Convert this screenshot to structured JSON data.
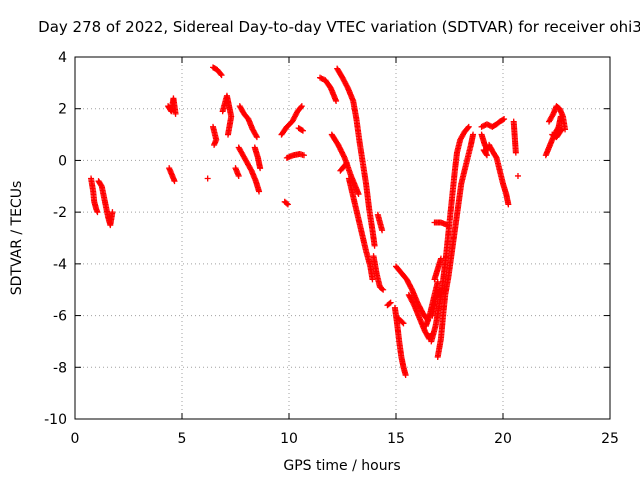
{
  "chart_data": {
    "type": "scatter",
    "title": "Day 278 of 2022, Sidereal Day-to-day VTEC variation (SDTVAR) for receiver ohi3",
    "xlabel": "GPS time / hours",
    "ylabel": "SDTVAR / TECUs",
    "xlim": [
      0,
      25
    ],
    "ylim": [
      -10,
      4
    ],
    "xticks": [
      0,
      5,
      10,
      15,
      20,
      25
    ],
    "yticks": [
      -10,
      -8,
      -6,
      -4,
      -2,
      0,
      2,
      4
    ],
    "xtick_labels": [
      "0",
      "5",
      "10",
      "15",
      "20",
      "25"
    ],
    "ytick_labels": [
      "-10",
      "-8",
      "-6",
      "-4",
      "-2",
      "0",
      "2",
      "4"
    ],
    "grid": true,
    "marker": "plus",
    "color": "#ff0000",
    "tracks": [
      [
        [
          0.75,
          -0.7
        ],
        [
          0.85,
          -1.2
        ],
        [
          0.9,
          -1.6
        ],
        [
          1.0,
          -1.9
        ],
        [
          1.05,
          -2.0
        ]
      ],
      [
        [
          1.1,
          -0.8
        ],
        [
          1.25,
          -1.0
        ],
        [
          1.4,
          -1.6
        ],
        [
          1.55,
          -2.2
        ],
        [
          1.65,
          -2.5
        ],
        [
          1.75,
          -2.0
        ]
      ],
      [
        [
          4.35,
          2.1
        ],
        [
          4.5,
          1.9
        ],
        [
          4.6,
          2.4
        ],
        [
          4.7,
          1.8
        ]
      ],
      [
        [
          4.4,
          -0.3
        ],
        [
          4.55,
          -0.6
        ],
        [
          4.65,
          -0.8
        ]
      ],
      [
        [
          6.2,
          -0.7
        ]
      ],
      [
        [
          6.45,
          3.6
        ],
        [
          6.65,
          3.5
        ],
        [
          6.85,
          3.3
        ]
      ],
      [
        [
          6.45,
          1.3
        ],
        [
          6.6,
          0.8
        ],
        [
          6.5,
          0.6
        ]
      ],
      [
        [
          6.9,
          1.9
        ],
        [
          7.1,
          2.5
        ],
        [
          7.3,
          1.7
        ],
        [
          7.15,
          1.0
        ]
      ],
      [
        [
          7.7,
          2.1
        ],
        [
          7.9,
          1.8
        ],
        [
          8.1,
          1.6
        ],
        [
          8.3,
          1.2
        ],
        [
          8.5,
          0.9
        ]
      ],
      [
        [
          7.65,
          0.5
        ],
        [
          7.85,
          0.2
        ],
        [
          8.05,
          -0.1
        ],
        [
          8.25,
          -0.4
        ],
        [
          8.45,
          -0.8
        ],
        [
          8.6,
          -1.2
        ]
      ],
      [
        [
          7.5,
          -0.3
        ],
        [
          7.65,
          -0.6
        ]
      ],
      [
        [
          8.4,
          0.5
        ],
        [
          8.55,
          0.1
        ],
        [
          8.65,
          -0.3
        ]
      ],
      [
        [
          9.65,
          1.0
        ],
        [
          9.9,
          1.3
        ],
        [
          10.15,
          1.5
        ],
        [
          10.4,
          1.9
        ],
        [
          10.6,
          2.1
        ]
      ],
      [
        [
          9.8,
          -1.6
        ],
        [
          9.95,
          -1.7
        ]
      ],
      [
        [
          9.9,
          0.1
        ],
        [
          10.2,
          0.2
        ],
        [
          10.5,
          0.25
        ],
        [
          10.7,
          0.2
        ]
      ],
      [
        [
          10.45,
          1.25
        ],
        [
          10.65,
          1.15
        ]
      ],
      [
        [
          11.45,
          3.2
        ],
        [
          11.7,
          3.1
        ],
        [
          11.95,
          2.8
        ],
        [
          12.2,
          2.3
        ]
      ],
      [
        [
          12.25,
          3.55
        ],
        [
          12.5,
          3.2
        ],
        [
          12.75,
          2.8
        ],
        [
          13.0,
          2.3
        ],
        [
          13.15,
          1.6
        ],
        [
          13.3,
          0.7
        ],
        [
          13.45,
          -0.1
        ],
        [
          13.6,
          -0.9
        ],
        [
          13.75,
          -1.9
        ],
        [
          13.9,
          -2.7
        ],
        [
          14.0,
          -3.3
        ]
      ],
      [
        [
          12.0,
          1.0
        ],
        [
          12.3,
          0.6
        ],
        [
          12.6,
          0.1
        ],
        [
          12.9,
          -0.6
        ],
        [
          13.1,
          -1.0
        ],
        [
          13.25,
          -1.3
        ]
      ],
      [
        [
          12.4,
          -0.4
        ],
        [
          12.7,
          -0.1
        ]
      ],
      [
        [
          12.8,
          -0.7
        ],
        [
          13.0,
          -1.4
        ],
        [
          13.2,
          -2.1
        ],
        [
          13.4,
          -2.8
        ],
        [
          13.6,
          -3.5
        ],
        [
          13.8,
          -4.1
        ],
        [
          13.9,
          -4.6
        ]
      ],
      [
        [
          13.95,
          -3.7
        ],
        [
          14.1,
          -4.4
        ],
        [
          14.25,
          -4.9
        ],
        [
          14.4,
          -5.0
        ]
      ],
      [
        [
          14.15,
          -2.1
        ],
        [
          14.35,
          -2.7
        ]
      ],
      [
        [
          14.6,
          -5.6
        ],
        [
          14.75,
          -5.5
        ]
      ],
      [
        [
          15.0,
          -4.1
        ],
        [
          15.2,
          -4.3
        ],
        [
          15.5,
          -4.6
        ],
        [
          15.75,
          -5.0
        ],
        [
          16.0,
          -5.5
        ],
        [
          16.25,
          -5.9
        ],
        [
          16.5,
          -6.2
        ]
      ],
      [
        [
          14.95,
          -5.7
        ],
        [
          15.05,
          -6.3
        ],
        [
          15.15,
          -7.0
        ],
        [
          15.25,
          -7.6
        ],
        [
          15.35,
          -8.0
        ],
        [
          15.45,
          -8.3
        ]
      ],
      [
        [
          15.1,
          -6.1
        ],
        [
          15.35,
          -6.3
        ]
      ],
      [
        [
          15.6,
          -5.2
        ],
        [
          15.85,
          -5.6
        ],
        [
          16.1,
          -6.1
        ],
        [
          16.35,
          -6.6
        ],
        [
          16.55,
          -6.9
        ],
        [
          16.7,
          -6.7
        ]
      ],
      [
        [
          16.4,
          -6.4
        ],
        [
          16.6,
          -5.9
        ],
        [
          16.8,
          -5.2
        ],
        [
          16.95,
          -4.7
        ]
      ],
      [
        [
          16.7,
          -6.0
        ],
        [
          16.85,
          -5.4
        ]
      ],
      [
        [
          16.65,
          -7.0
        ],
        [
          16.85,
          -6.4
        ],
        [
          17.0,
          -5.7
        ],
        [
          17.15,
          -5.0
        ],
        [
          17.25,
          -4.3
        ],
        [
          17.35,
          -3.6
        ],
        [
          17.45,
          -2.8
        ],
        [
          17.55,
          -2.0
        ],
        [
          17.65,
          -1.2
        ],
        [
          17.75,
          -0.4
        ],
        [
          17.85,
          0.3
        ],
        [
          18.0,
          0.8
        ],
        [
          18.2,
          1.1
        ],
        [
          18.4,
          1.3
        ]
      ],
      [
        [
          16.95,
          -7.6
        ],
        [
          17.1,
          -6.9
        ],
        [
          17.2,
          -6.0
        ],
        [
          17.3,
          -5.2
        ],
        [
          17.45,
          -4.5
        ],
        [
          17.55,
          -3.9
        ],
        [
          17.65,
          -3.3
        ],
        [
          17.75,
          -2.7
        ],
        [
          17.85,
          -2.1
        ],
        [
          17.95,
          -1.5
        ],
        [
          18.05,
          -0.9
        ],
        [
          18.2,
          -0.4
        ],
        [
          18.35,
          0.1
        ],
        [
          18.5,
          0.6
        ],
        [
          18.6,
          1.0
        ]
      ],
      [
        [
          16.8,
          -4.6
        ],
        [
          16.95,
          -4.2
        ],
        [
          17.1,
          -3.8
        ]
      ],
      [
        [
          16.8,
          -2.4
        ],
        [
          17.1,
          -2.4
        ],
        [
          17.4,
          -2.5
        ]
      ],
      [
        [
          16.9,
          -5.3
        ],
        [
          17.05,
          -5.0
        ]
      ],
      [
        [
          19.0,
          1.3
        ],
        [
          19.25,
          1.4
        ],
        [
          19.5,
          1.3
        ],
        [
          19.7,
          1.4
        ],
        [
          19.85,
          1.5
        ],
        [
          20.05,
          1.6
        ]
      ],
      [
        [
          19.0,
          1.0
        ],
        [
          19.15,
          0.6
        ],
        [
          19.3,
          0.4
        ]
      ],
      [
        [
          19.1,
          0.4
        ],
        [
          19.25,
          0.2
        ]
      ],
      [
        [
          19.35,
          0.6
        ],
        [
          19.55,
          0.3
        ],
        [
          19.7,
          0.1
        ],
        [
          19.85,
          -0.4
        ],
        [
          20.0,
          -0.9
        ],
        [
          20.15,
          -1.3
        ],
        [
          20.25,
          -1.7
        ]
      ],
      [
        [
          20.5,
          1.5
        ],
        [
          20.55,
          0.9
        ],
        [
          20.6,
          0.3
        ]
      ],
      [
        [
          20.7,
          -0.6
        ]
      ],
      [
        [
          22.0,
          0.2
        ],
        [
          22.2,
          0.6
        ],
        [
          22.4,
          1.0
        ],
        [
          22.6,
          1.3
        ],
        [
          22.7,
          1.7
        ]
      ],
      [
        [
          22.15,
          1.5
        ],
        [
          22.35,
          1.8
        ],
        [
          22.5,
          2.1
        ],
        [
          22.65,
          2.0
        ],
        [
          22.8,
          1.7
        ],
        [
          22.9,
          1.2
        ]
      ],
      [
        [
          22.3,
          1.0
        ],
        [
          22.5,
          0.9
        ],
        [
          22.75,
          1.2
        ]
      ]
    ]
  }
}
